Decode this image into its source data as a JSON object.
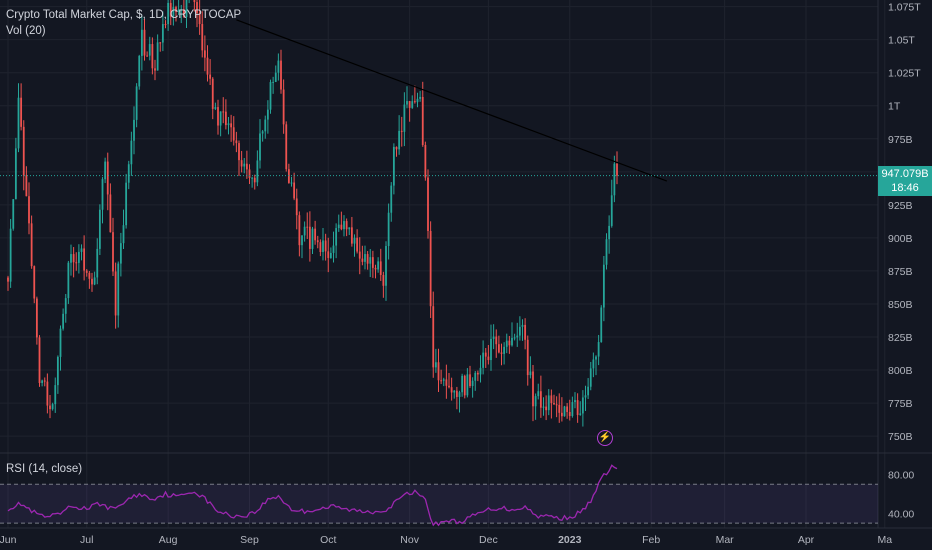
{
  "header": {
    "title": "Crypto Total Market Cap, $, 1D, CRYPTOCAP",
    "volume_label": "Vol (20)",
    "rsi_label": "RSI (14, close)"
  },
  "price_badge": {
    "price": "947.079B",
    "countdown": "18:46",
    "color": "#26a69a"
  },
  "colors": {
    "up": "#26a69a",
    "down": "#ef5350",
    "rsi": "#9c27b0",
    "background": "#131722",
    "trendline": "#000000"
  },
  "icons": {
    "alert": "lightning-icon"
  },
  "chart_data": [
    {
      "type": "candlestick",
      "title": "Crypto Total Market Cap, $, 1D, CRYPTOCAP",
      "y_unit": "USD (billions)",
      "ylim": [
        738,
        1080
      ],
      "y_ticks": [
        750,
        775,
        800,
        825,
        850,
        875,
        900,
        925,
        950,
        975,
        1000,
        1025,
        1050,
        1075
      ],
      "y_tick_labels": [
        "750B",
        "775B",
        "800B",
        "825B",
        "850B",
        "875B",
        "900B",
        "925B",
        "",
        "975B",
        "1T",
        "1.025T",
        "1.05T",
        "1.075T"
      ],
      "x_tick_labels": [
        "Jun",
        "Jul",
        "Aug",
        "Sep",
        "Oct",
        "Nov",
        "Dec",
        "2023",
        "Feb",
        "Mar",
        "Apr",
        "Ma"
      ],
      "last_price": 947.079,
      "grid": true,
      "ohlc_path": [
        [
          "2022-06-01",
          870
        ],
        [
          "2022-06-05",
          1000
        ],
        [
          "2022-06-10",
          880
        ],
        [
          "2022-06-13",
          790
        ],
        [
          "2022-06-18",
          775
        ],
        [
          "2022-06-24",
          880
        ],
        [
          "2022-06-28",
          890
        ],
        [
          "2022-07-04",
          870
        ],
        [
          "2022-07-08",
          960
        ],
        [
          "2022-07-12",
          850
        ],
        [
          "2022-07-17",
          960
        ],
        [
          "2022-07-22",
          1050
        ],
        [
          "2022-07-27",
          1030
        ],
        [
          "2022-07-31",
          1070
        ],
        [
          "2022-08-05",
          1065
        ],
        [
          "2022-08-10",
          1090
        ],
        [
          "2022-08-15",
          1040
        ],
        [
          "2022-08-19",
          990
        ],
        [
          "2022-08-24",
          990
        ],
        [
          "2022-08-29",
          960
        ],
        [
          "2022-09-03",
          950
        ],
        [
          "2022-09-08",
          1000
        ],
        [
          "2022-09-12",
          1040
        ],
        [
          "2022-09-15",
          960
        ],
        [
          "2022-09-20",
          900
        ],
        [
          "2022-09-26",
          900
        ],
        [
          "2022-10-01",
          890
        ],
        [
          "2022-10-07",
          920
        ],
        [
          "2022-10-12",
          890
        ],
        [
          "2022-10-17",
          880
        ],
        [
          "2022-10-22",
          870
        ],
        [
          "2022-10-26",
          960
        ],
        [
          "2022-10-31",
          1000
        ],
        [
          "2022-11-05",
          1015
        ],
        [
          "2022-11-08",
          900
        ],
        [
          "2022-11-10",
          800
        ],
        [
          "2022-11-14",
          795
        ],
        [
          "2022-11-18",
          785
        ],
        [
          "2022-11-23",
          790
        ],
        [
          "2022-11-28",
          800
        ],
        [
          "2022-12-02",
          820
        ],
        [
          "2022-12-08",
          815
        ],
        [
          "2022-12-14",
          830
        ],
        [
          "2022-12-18",
          780
        ],
        [
          "2022-12-24",
          775
        ],
        [
          "2022-12-30",
          765
        ],
        [
          "2023-01-04",
          770
        ],
        [
          "2023-01-08",
          785
        ],
        [
          "2023-01-11",
          810
        ],
        [
          "2023-01-13",
          850
        ],
        [
          "2023-01-15",
          900
        ],
        [
          "2023-01-18",
          950
        ],
        [
          "2023-01-19",
          947
        ]
      ],
      "trendline": [
        [
          "2022-08-27",
          1065
        ],
        [
          "2023-02-07",
          943
        ]
      ]
    },
    {
      "type": "line",
      "series": [
        {
          "name": "RSI (14, close)"
        }
      ],
      "y_tick_labels": [
        "80.00",
        "40.00"
      ],
      "levels": [
        70,
        30
      ],
      "ylim": [
        25,
        100
      ],
      "rsi_path": [
        [
          "2022-06-01",
          45
        ],
        [
          "2022-06-06",
          50
        ],
        [
          "2022-06-10",
          42
        ],
        [
          "2022-06-15",
          36
        ],
        [
          "2022-06-20",
          38
        ],
        [
          "2022-06-25",
          47
        ],
        [
          "2022-07-01",
          45
        ],
        [
          "2022-07-06",
          50
        ],
        [
          "2022-07-11",
          44
        ],
        [
          "2022-07-16",
          53
        ],
        [
          "2022-07-21",
          60
        ],
        [
          "2022-07-26",
          55
        ],
        [
          "2022-07-31",
          60
        ],
        [
          "2022-08-05",
          57
        ],
        [
          "2022-08-10",
          63
        ],
        [
          "2022-08-14",
          58
        ],
        [
          "2022-08-19",
          44
        ],
        [
          "2022-08-24",
          38
        ],
        [
          "2022-08-29",
          37
        ],
        [
          "2022-09-03",
          41
        ],
        [
          "2022-09-08",
          54
        ],
        [
          "2022-09-12",
          58
        ],
        [
          "2022-09-17",
          44
        ],
        [
          "2022-09-22",
          42
        ],
        [
          "2022-09-28",
          45
        ],
        [
          "2022-10-03",
          47
        ],
        [
          "2022-10-08",
          44
        ],
        [
          "2022-10-14",
          42
        ],
        [
          "2022-10-19",
          42
        ],
        [
          "2022-10-24",
          45
        ],
        [
          "2022-10-29",
          57
        ],
        [
          "2022-11-02",
          62
        ],
        [
          "2022-11-06",
          60
        ],
        [
          "2022-11-08",
          44
        ],
        [
          "2022-11-10",
          28
        ],
        [
          "2022-11-15",
          33
        ],
        [
          "2022-11-20",
          31
        ],
        [
          "2022-11-25",
          37
        ],
        [
          "2022-11-30",
          43
        ],
        [
          "2022-12-05",
          46
        ],
        [
          "2022-12-10",
          44
        ],
        [
          "2022-12-15",
          47
        ],
        [
          "2022-12-19",
          38
        ],
        [
          "2022-12-24",
          37
        ],
        [
          "2022-12-29",
          35
        ],
        [
          "2023-01-03",
          38
        ],
        [
          "2023-01-07",
          45
        ],
        [
          "2023-01-10",
          58
        ],
        [
          "2023-01-13",
          75
        ],
        [
          "2023-01-15",
          82
        ],
        [
          "2023-01-17",
          88
        ],
        [
          "2023-01-19",
          86
        ]
      ]
    }
  ]
}
